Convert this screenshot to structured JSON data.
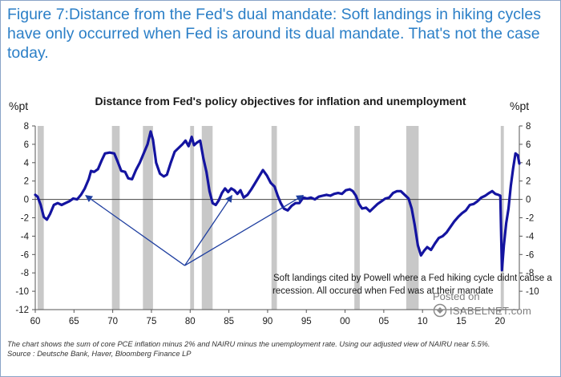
{
  "headline": "Figure 7:Distance from the Fed's dual mandate: Soft landings in hiking cycles have only occurred when Fed is around its dual mandate. That's not the case today.",
  "footnote": {
    "line1": "The chart shows the sum of core PCE inflation minus 2% and NAIRU minus the unemployment rate. Using our adjusted view of NAIRU near 5.5%.",
    "line2": "Source : Deutsche Bank, Haver, Bloomberg Finance LP"
  },
  "watermark": {
    "line1": "Posted on",
    "line2": "ISABELNET.com"
  },
  "colors": {
    "line": "#1414a0",
    "recession": "#c8c8c8",
    "headline": "#2b7fc7",
    "arrow": "#1f3fa0"
  },
  "chart_data": {
    "type": "line",
    "title": "Distance from Fed's policy objectives for inflation and unemployment",
    "ylabel_left": "%pt",
    "ylabel_right": "%pt",
    "xlim": [
      1960,
      2022.5
    ],
    "ylim": [
      -12,
      8
    ],
    "y_ticks": [
      -12,
      -10,
      -8,
      -6,
      -4,
      -2,
      0,
      2,
      4,
      6,
      8
    ],
    "y_ticks_right": [
      -10,
      -8,
      -6,
      -4,
      -2,
      0,
      2,
      4,
      6,
      8
    ],
    "x_ticks": [
      {
        "x": 1960,
        "label": "60"
      },
      {
        "x": 1965,
        "label": "65"
      },
      {
        "x": 1970,
        "label": "70"
      },
      {
        "x": 1975,
        "label": "75"
      },
      {
        "x": 1980,
        "label": "80"
      },
      {
        "x": 1985,
        "label": "85"
      },
      {
        "x": 1990,
        "label": "90"
      },
      {
        "x": 1995,
        "label": "95"
      },
      {
        "x": 2000,
        "label": "00"
      },
      {
        "x": 2005,
        "label": "05"
      },
      {
        "x": 2010,
        "label": "10"
      },
      {
        "x": 2015,
        "label": "15"
      },
      {
        "x": 2020,
        "label": "20"
      }
    ],
    "recession_bands": [
      [
        1960.3,
        1961.1
      ],
      [
        1969.9,
        1970.9
      ],
      [
        1973.9,
        1975.2
      ],
      [
        1980.0,
        1980.5
      ],
      [
        1981.5,
        1982.9
      ],
      [
        1990.5,
        1991.2
      ],
      [
        2001.2,
        2001.9
      ],
      [
        2007.9,
        2009.5
      ],
      [
        2020.1,
        2020.5
      ]
    ],
    "series": [
      {
        "values": [
          [
            1960.0,
            0.5
          ],
          [
            1960.3,
            0.3
          ],
          [
            1960.7,
            -0.6
          ],
          [
            1961.1,
            -1.9
          ],
          [
            1961.5,
            -2.2
          ],
          [
            1961.9,
            -1.6
          ],
          [
            1962.4,
            -0.6
          ],
          [
            1962.9,
            -0.4
          ],
          [
            1963.4,
            -0.6
          ],
          [
            1963.9,
            -0.4
          ],
          [
            1964.4,
            -0.2
          ],
          [
            1964.9,
            0.1
          ],
          [
            1965.4,
            0.0
          ],
          [
            1965.9,
            0.5
          ],
          [
            1966.4,
            1.2
          ],
          [
            1966.9,
            2.2
          ],
          [
            1967.2,
            3.1
          ],
          [
            1967.6,
            3.0
          ],
          [
            1968.1,
            3.3
          ],
          [
            1968.6,
            4.3
          ],
          [
            1969.0,
            5.0
          ],
          [
            1969.6,
            5.1
          ],
          [
            1970.2,
            5.0
          ],
          [
            1970.6,
            4.2
          ],
          [
            1971.1,
            3.1
          ],
          [
            1971.6,
            3.0
          ],
          [
            1972.0,
            2.3
          ],
          [
            1972.5,
            2.2
          ],
          [
            1973.0,
            3.2
          ],
          [
            1973.5,
            4.0
          ],
          [
            1974.0,
            5.0
          ],
          [
            1974.5,
            6.0
          ],
          [
            1974.9,
            7.4
          ],
          [
            1975.2,
            6.5
          ],
          [
            1975.6,
            4.0
          ],
          [
            1976.1,
            2.8
          ],
          [
            1976.6,
            2.5
          ],
          [
            1977.0,
            2.7
          ],
          [
            1977.5,
            4.0
          ],
          [
            1978.0,
            5.2
          ],
          [
            1978.5,
            5.6
          ],
          [
            1979.0,
            6.0
          ],
          [
            1979.4,
            6.4
          ],
          [
            1979.8,
            5.8
          ],
          [
            1980.2,
            6.8
          ],
          [
            1980.5,
            5.9
          ],
          [
            1980.9,
            6.2
          ],
          [
            1981.3,
            6.4
          ],
          [
            1981.7,
            4.5
          ],
          [
            1982.1,
            3.0
          ],
          [
            1982.5,
            0.9
          ],
          [
            1982.9,
            -0.4
          ],
          [
            1983.3,
            -0.6
          ],
          [
            1983.7,
            -0.1
          ],
          [
            1984.1,
            0.7
          ],
          [
            1984.5,
            1.2
          ],
          [
            1984.9,
            0.8
          ],
          [
            1985.3,
            1.2
          ],
          [
            1985.7,
            1.0
          ],
          [
            1986.1,
            0.6
          ],
          [
            1986.5,
            1.0
          ],
          [
            1986.9,
            0.2
          ],
          [
            1987.4,
            0.5
          ],
          [
            1987.9,
            1.1
          ],
          [
            1988.4,
            1.8
          ],
          [
            1988.9,
            2.5
          ],
          [
            1989.4,
            3.2
          ],
          [
            1989.9,
            2.6
          ],
          [
            1990.4,
            1.8
          ],
          [
            1990.9,
            1.4
          ],
          [
            1991.3,
            0.4
          ],
          [
            1991.7,
            -0.4
          ],
          [
            1992.1,
            -1.0
          ],
          [
            1992.6,
            -1.2
          ],
          [
            1993.1,
            -0.7
          ],
          [
            1993.6,
            -0.4
          ],
          [
            1994.1,
            -0.4
          ],
          [
            1994.6,
            0.2
          ],
          [
            1995.1,
            0.1
          ],
          [
            1995.6,
            0.2
          ],
          [
            1996.1,
            0.0
          ],
          [
            1996.6,
            0.3
          ],
          [
            1997.1,
            0.4
          ],
          [
            1997.6,
            0.5
          ],
          [
            1998.1,
            0.4
          ],
          [
            1998.6,
            0.6
          ],
          [
            1999.1,
            0.7
          ],
          [
            1999.6,
            0.6
          ],
          [
            2000.1,
            1.0
          ],
          [
            2000.6,
            1.1
          ],
          [
            2001.0,
            0.9
          ],
          [
            2001.4,
            0.4
          ],
          [
            2001.8,
            -0.5
          ],
          [
            2002.2,
            -1.0
          ],
          [
            2002.7,
            -0.9
          ],
          [
            2003.2,
            -1.3
          ],
          [
            2003.7,
            -0.9
          ],
          [
            2004.2,
            -0.5
          ],
          [
            2004.7,
            -0.2
          ],
          [
            2005.2,
            0.1
          ],
          [
            2005.7,
            0.2
          ],
          [
            2006.2,
            0.7
          ],
          [
            2006.7,
            0.9
          ],
          [
            2007.2,
            0.9
          ],
          [
            2007.7,
            0.5
          ],
          [
            2008.2,
            0.1
          ],
          [
            2008.6,
            -1.0
          ],
          [
            2009.0,
            -2.8
          ],
          [
            2009.4,
            -5.0
          ],
          [
            2009.8,
            -6.1
          ],
          [
            2010.2,
            -5.6
          ],
          [
            2010.6,
            -5.2
          ],
          [
            2011.1,
            -5.5
          ],
          [
            2011.6,
            -4.8
          ],
          [
            2012.1,
            -4.2
          ],
          [
            2012.6,
            -4.0
          ],
          [
            2013.1,
            -3.6
          ],
          [
            2013.6,
            -3.0
          ],
          [
            2014.1,
            -2.4
          ],
          [
            2014.6,
            -1.9
          ],
          [
            2015.1,
            -1.5
          ],
          [
            2015.6,
            -1.2
          ],
          [
            2016.1,
            -0.6
          ],
          [
            2016.6,
            -0.5
          ],
          [
            2017.1,
            -0.2
          ],
          [
            2017.6,
            0.2
          ],
          [
            2018.1,
            0.4
          ],
          [
            2018.6,
            0.7
          ],
          [
            2019.0,
            0.9
          ],
          [
            2019.4,
            0.6
          ],
          [
            2019.8,
            0.5
          ],
          [
            2020.05,
            0.4
          ],
          [
            2020.25,
            -7.7
          ],
          [
            2020.5,
            -5.0
          ],
          [
            2020.8,
            -2.6
          ],
          [
            2021.1,
            -1.0
          ],
          [
            2021.4,
            1.5
          ],
          [
            2021.7,
            3.4
          ],
          [
            2022.0,
            5.0
          ],
          [
            2022.3,
            4.8
          ],
          [
            2022.5,
            3.9
          ]
        ]
      }
    ],
    "annotation": {
      "text_line1": "Soft landings cited by Powell where a Fed hiking cycle didnt cause a",
      "text_line2": "recession. All occured when Fed was at their mandate",
      "arrow_targets": [
        [
          1966.5,
          0.0
        ],
        [
          1985.4,
          0.0
        ],
        [
          1994.6,
          0.0
        ]
      ],
      "arrow_origin": [
        1979.3,
        -7.2
      ]
    }
  }
}
